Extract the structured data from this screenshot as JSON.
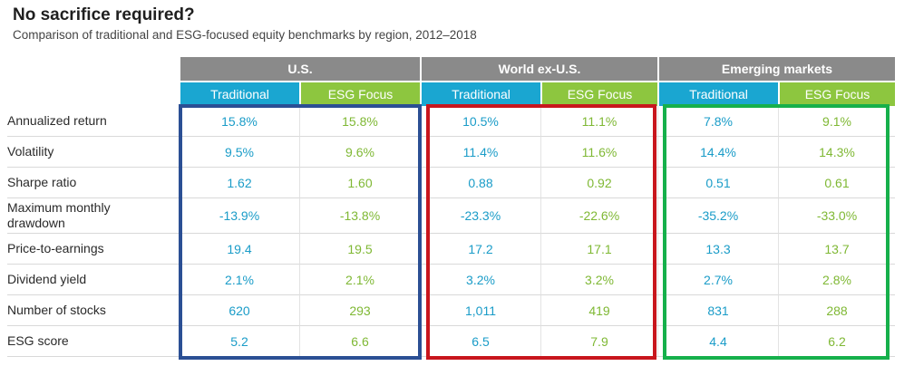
{
  "title": "No sacrifice required?",
  "subtitle": "Comparison of traditional and ESG-focused equity benchmarks by region, 2012–2018",
  "regions": [
    {
      "name": "U.S.",
      "traditional": "Traditional",
      "esg": "ESG Focus"
    },
    {
      "name": "World ex-U.S.",
      "traditional": "Traditional",
      "esg": "ESG Focus"
    },
    {
      "name": "Emerging markets",
      "traditional": "Traditional",
      "esg": "ESG Focus"
    }
  ],
  "rows": [
    {
      "label": "Annualized return",
      "values": [
        "15.8%",
        "15.8%",
        "10.5%",
        "11.1%",
        "7.8%",
        "9.1%"
      ]
    },
    {
      "label": "Volatility",
      "values": [
        "9.5%",
        "9.6%",
        "11.4%",
        "11.6%",
        "14.4%",
        "14.3%"
      ]
    },
    {
      "label": "Sharpe ratio",
      "values": [
        "1.62",
        "1.60",
        "0.88",
        "0.92",
        "0.51",
        "0.61"
      ]
    },
    {
      "label": "Maximum monthly drawdown",
      "values": [
        "-13.9%",
        "-13.8%",
        "-23.3%",
        "-22.6%",
        "-35.2%",
        "-33.0%"
      ]
    },
    {
      "label": "Price-to-earnings",
      "values": [
        "19.4",
        "19.5",
        "17.2",
        "17.1",
        "13.3",
        "13.7"
      ]
    },
    {
      "label": "Dividend yield",
      "values": [
        "2.1%",
        "2.1%",
        "3.2%",
        "3.2%",
        "2.7%",
        "2.8%"
      ]
    },
    {
      "label": "Number of stocks",
      "values": [
        "620",
        "293",
        "1,011",
        "419",
        "831",
        "288"
      ]
    },
    {
      "label": "ESG score",
      "values": [
        "5.2",
        "6.6",
        "6.5",
        "7.9",
        "4.4",
        "6.2"
      ]
    }
  ],
  "colors": {
    "header_gray": "#8a8a8a",
    "traditional": "#1aa6d1",
    "esg_focus": "#8dc63f",
    "us_box": "#2b4f94",
    "world_box": "#c8161d",
    "em_box": "#16b04b"
  }
}
